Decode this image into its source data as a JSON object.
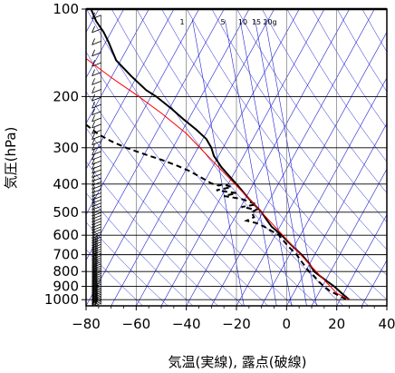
{
  "chart_data": {
    "type": "line",
    "title": "",
    "xlabel": "気温(実線), 露点(破線)",
    "ylabel": "気圧(hPa)",
    "xlim": [
      -80,
      40
    ],
    "ylim": [
      1050,
      100
    ],
    "y_scale": "log",
    "x_ticks": [
      -80,
      -60,
      -40,
      -20,
      0,
      20,
      40
    ],
    "x_tick_labels": [
      "−80",
      "−60",
      "−40",
      "−20",
      "0",
      "20",
      "40"
    ],
    "y_ticks": [
      100,
      200,
      300,
      400,
      500,
      600,
      700,
      800,
      900,
      1000
    ],
    "y_tick_labels": [
      "100",
      "200",
      "300",
      "400",
      "500",
      "600",
      "700",
      "800",
      "900",
      "1000"
    ],
    "mixing_ratio_labels": [
      "1",
      "5",
      "10",
      "15",
      "20g"
    ],
    "mixing_ratio_values": [
      1,
      5,
      10,
      15,
      20
    ],
    "grid": true,
    "series": [
      {
        "style": "solid-black",
        "color": "#000000",
        "points": [
          [
            -78,
            100
          ],
          [
            -76,
            110
          ],
          [
            -73,
            120
          ],
          [
            -71,
            130
          ],
          [
            -68,
            150
          ],
          [
            -62,
            170
          ],
          [
            -56,
            190
          ],
          [
            -52,
            200
          ],
          [
            -46,
            220
          ],
          [
            -41,
            240
          ],
          [
            -36,
            260
          ],
          [
            -32,
            280
          ],
          [
            -30,
            300
          ],
          [
            -29,
            320
          ],
          [
            -26,
            350
          ],
          [
            -20,
            400
          ],
          [
            -15,
            450
          ],
          [
            -10,
            500
          ],
          [
            -8,
            530
          ],
          [
            -6,
            560
          ],
          [
            -2,
            600
          ],
          [
            2,
            650
          ],
          [
            6,
            700
          ],
          [
            9,
            750
          ],
          [
            11,
            800
          ],
          [
            15,
            850
          ],
          [
            19,
            900
          ],
          [
            22,
            950
          ],
          [
            25,
            1000
          ]
        ]
      },
      {
        "style": "dashed-black",
        "color": "#000000",
        "points": [
          [
            -80,
            250
          ],
          [
            -75,
            270
          ],
          [
            -70,
            285
          ],
          [
            -64,
            300
          ],
          [
            -57,
            315
          ],
          [
            -50,
            330
          ],
          [
            -44,
            345
          ],
          [
            -39,
            360
          ],
          [
            -34,
            380
          ],
          [
            -30,
            398
          ],
          [
            -27,
            405
          ],
          [
            -25,
            400
          ],
          [
            -22,
            410
          ],
          [
            -28,
            420
          ],
          [
            -20,
            430
          ],
          [
            -25,
            440
          ],
          [
            -18,
            450
          ],
          [
            -15,
            460
          ],
          [
            -12,
            470
          ],
          [
            -18,
            480
          ],
          [
            -12,
            490
          ],
          [
            -14,
            500
          ],
          [
            -13,
            520
          ],
          [
            -16,
            535
          ],
          [
            -12,
            545
          ],
          [
            -9,
            560
          ],
          [
            -6,
            580
          ],
          [
            -3,
            600
          ],
          [
            -1,
            630
          ],
          [
            1,
            660
          ],
          [
            4,
            700
          ],
          [
            6,
            740
          ],
          [
            8,
            780
          ],
          [
            9,
            800
          ],
          [
            11,
            830
          ],
          [
            12,
            850
          ],
          [
            13,
            870
          ],
          [
            15,
            900
          ],
          [
            17,
            930
          ],
          [
            20,
            960
          ],
          [
            24,
            1000
          ]
        ]
      },
      {
        "style": "solid-red",
        "color": "#ff0000",
        "points": [
          [
            -80,
            148
          ],
          [
            -70,
            172
          ],
          [
            -60,
            197
          ],
          [
            -50,
            228
          ],
          [
            -40,
            268
          ],
          [
            -30,
            330
          ],
          [
            -20,
            405
          ],
          [
            -10,
            500
          ],
          [
            0,
            620
          ],
          [
            10,
            770
          ],
          [
            20,
            950
          ],
          [
            25,
            1000
          ]
        ]
      }
    ],
    "wind_barbs": true
  },
  "colors": {
    "grid": "#000000",
    "adiabats": "#1f1fd0",
    "temperature": "#000000",
    "dewpoint": "#000000",
    "parcel": "#ff0000"
  }
}
